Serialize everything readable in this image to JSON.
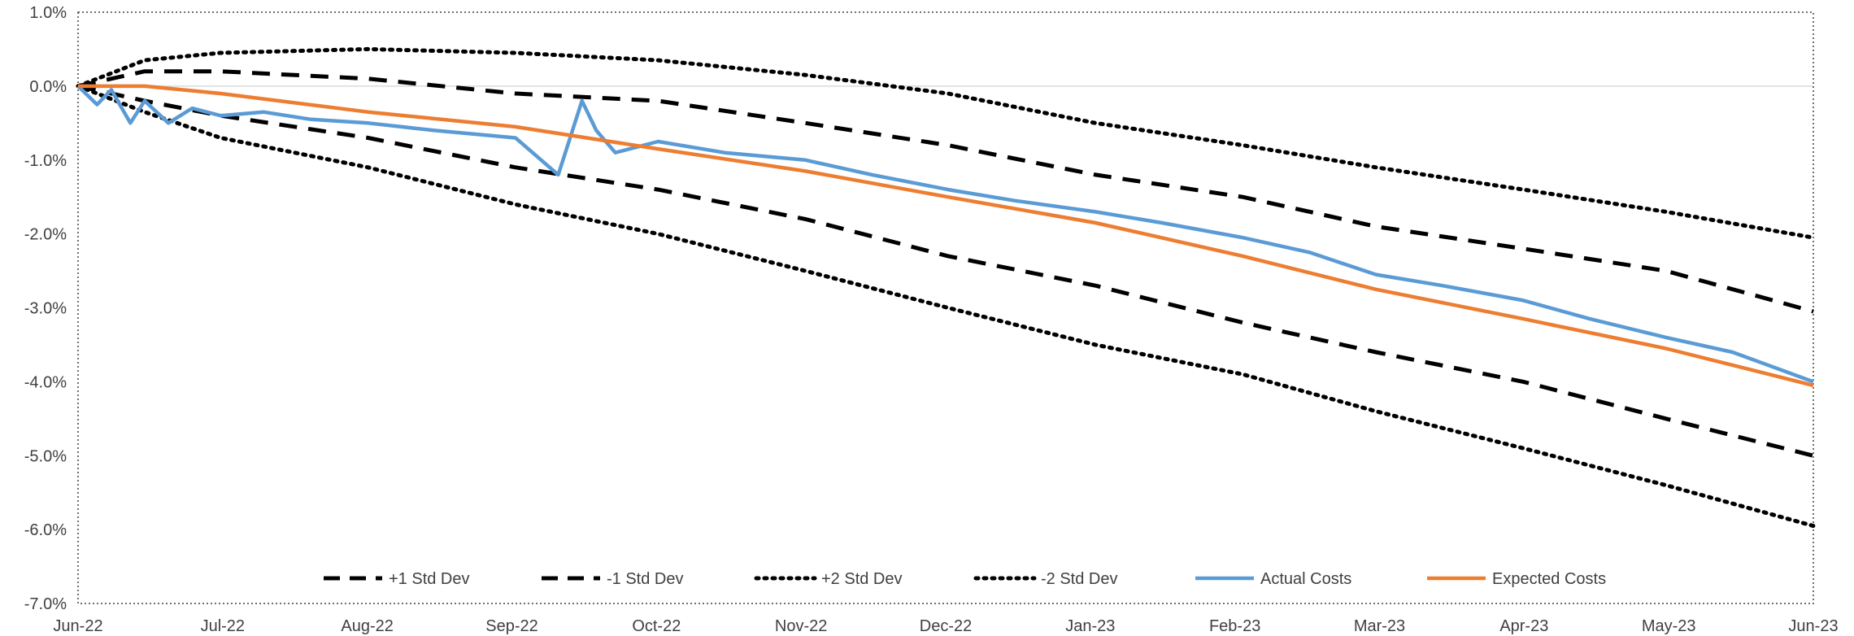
{
  "chart_data": {
    "type": "line",
    "title": "",
    "xlabel": "",
    "ylabel": "",
    "x_ticks": [
      "Jun-22",
      "Jul-22",
      "Aug-22",
      "Sep-22",
      "Oct-22",
      "Nov-22",
      "Dec-22",
      "Jan-23",
      "Feb-23",
      "Mar-23",
      "Apr-23",
      "May-23",
      "Jun-23"
    ],
    "y_ticks": [
      "1.0%",
      "0.0%",
      "-1.0%",
      "-2.0%",
      "-3.0%",
      "-4.0%",
      "-5.0%",
      "-6.0%",
      "-7.0%"
    ],
    "ylim": [
      -7.0,
      1.0
    ],
    "xlim": [
      "2022-06-01",
      "2023-06-01"
    ],
    "y_unit": "%",
    "gridlines": false,
    "zero_line": true,
    "legend_position": "bottom-inside",
    "series": [
      {
        "name": "+1 Std Dev",
        "color": "#000000",
        "style": "dashed",
        "x": [
          "2022-06-01",
          "2022-06-15",
          "2022-07-01",
          "2022-08-01",
          "2022-09-01",
          "2022-10-01",
          "2022-11-01",
          "2022-12-01",
          "2023-01-01",
          "2023-02-01",
          "2023-03-01",
          "2023-04-01",
          "2023-05-01",
          "2023-06-01"
        ],
        "y": [
          0.0,
          0.2,
          0.2,
          0.1,
          -0.1,
          -0.2,
          -0.5,
          -0.8,
          -1.2,
          -1.5,
          -1.9,
          -2.2,
          -2.5,
          -3.05
        ]
      },
      {
        "name": "-1 Std Dev",
        "color": "#000000",
        "style": "dashed",
        "x": [
          "2022-06-01",
          "2022-06-15",
          "2022-07-01",
          "2022-08-01",
          "2022-09-01",
          "2022-10-01",
          "2022-11-01",
          "2022-12-01",
          "2023-01-01",
          "2023-02-01",
          "2023-03-01",
          "2023-04-01",
          "2023-05-01",
          "2023-06-01"
        ],
        "y": [
          0.0,
          -0.2,
          -0.4,
          -0.7,
          -1.1,
          -1.4,
          -1.8,
          -2.3,
          -2.7,
          -3.2,
          -3.6,
          -4.0,
          -4.5,
          -5.0
        ]
      },
      {
        "name": "+2 Std Dev",
        "color": "#000000",
        "style": "dotted",
        "x": [
          "2022-06-01",
          "2022-06-15",
          "2022-07-01",
          "2022-08-01",
          "2022-09-01",
          "2022-10-01",
          "2022-11-01",
          "2022-12-01",
          "2023-01-01",
          "2023-02-01",
          "2023-03-01",
          "2023-04-01",
          "2023-05-01",
          "2023-06-01"
        ],
        "y": [
          0.0,
          0.35,
          0.45,
          0.5,
          0.45,
          0.35,
          0.15,
          -0.1,
          -0.5,
          -0.8,
          -1.1,
          -1.4,
          -1.7,
          -2.05
        ]
      },
      {
        "name": "-2 Std Dev",
        "color": "#000000",
        "style": "dotted",
        "x": [
          "2022-06-01",
          "2022-06-15",
          "2022-07-01",
          "2022-08-01",
          "2022-09-01",
          "2022-10-01",
          "2022-11-01",
          "2022-12-01",
          "2023-01-01",
          "2023-02-01",
          "2023-03-01",
          "2023-04-01",
          "2023-05-01",
          "2023-06-01"
        ],
        "y": [
          0.0,
          -0.35,
          -0.7,
          -1.1,
          -1.6,
          -2.0,
          -2.5,
          -3.0,
          -3.5,
          -3.9,
          -4.4,
          -4.9,
          -5.4,
          -5.95
        ]
      },
      {
        "name": "Actual Costs",
        "color": "#5B9BD5",
        "style": "solid",
        "x": [
          "2022-06-01",
          "2022-06-05",
          "2022-06-08",
          "2022-06-12",
          "2022-06-15",
          "2022-06-20",
          "2022-06-25",
          "2022-07-01",
          "2022-07-10",
          "2022-07-20",
          "2022-08-01",
          "2022-08-15",
          "2022-09-01",
          "2022-09-10",
          "2022-09-15",
          "2022-09-18",
          "2022-09-22",
          "2022-10-01",
          "2022-10-15",
          "2022-11-01",
          "2022-11-15",
          "2022-12-01",
          "2022-12-15",
          "2023-01-01",
          "2023-01-15",
          "2023-02-01",
          "2023-02-15",
          "2023-03-01",
          "2023-03-15",
          "2023-04-01",
          "2023-04-15",
          "2023-05-01",
          "2023-05-15",
          "2023-06-01"
        ],
        "y": [
          0.0,
          -0.25,
          -0.05,
          -0.5,
          -0.2,
          -0.5,
          -0.3,
          -0.4,
          -0.35,
          -0.45,
          -0.5,
          -0.6,
          -0.7,
          -1.2,
          -0.2,
          -0.6,
          -0.9,
          -0.75,
          -0.9,
          -1.0,
          -1.2,
          -1.4,
          -1.55,
          -1.7,
          -1.85,
          -2.05,
          -2.25,
          -2.55,
          -2.7,
          -2.9,
          -3.15,
          -3.4,
          -3.6,
          -4.0
        ]
      },
      {
        "name": "Expected Costs",
        "color": "#ED7D31",
        "style": "solid",
        "x": [
          "2022-06-01",
          "2022-06-15",
          "2022-07-01",
          "2022-08-01",
          "2022-09-01",
          "2022-10-01",
          "2022-11-01",
          "2022-12-01",
          "2023-01-01",
          "2023-02-01",
          "2023-03-01",
          "2023-04-01",
          "2023-05-01",
          "2023-06-01"
        ],
        "y": [
          0.0,
          0.0,
          -0.1,
          -0.35,
          -0.55,
          -0.85,
          -1.15,
          -1.5,
          -1.85,
          -2.3,
          -2.75,
          -3.15,
          -3.55,
          -4.05
        ]
      }
    ]
  }
}
